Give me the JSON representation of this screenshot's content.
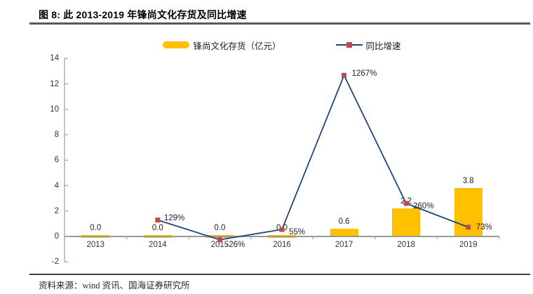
{
  "header": {
    "title": "图 8:  此 2013-2019 年锋尚文化存货及同比增速"
  },
  "legend": {
    "bar_label": "锋尚文化存货（亿元）",
    "line_label": "同比增速"
  },
  "chart_data": {
    "type": "bar+line",
    "categories": [
      "2013",
      "2014",
      "2015",
      "2016",
      "2017",
      "2018",
      "2019"
    ],
    "series": [
      {
        "name": "锋尚文化存货（亿元）",
        "type": "bar",
        "axis": "left",
        "color": "#FFC000",
        "values": [
          0.0,
          0.0,
          0.0,
          0.0,
          0.6,
          2.2,
          3.8
        ],
        "labels": [
          "0.0",
          "0.0",
          "0.0",
          "0.0",
          "0.6",
          "2.2",
          "3.8"
        ]
      },
      {
        "name": "同比增速",
        "type": "line",
        "axis": "left_scaled_pct",
        "color": "#1F477D",
        "marker_color": "#BE4B48",
        "pct_values": [
          null,
          129,
          -26,
          55,
          1267,
          260,
          73
        ],
        "labels": [
          "",
          "129%",
          "-26%",
          "55%",
          "1267%",
          "260%",
          "73%"
        ]
      }
    ],
    "ylabel": "",
    "xlabel": "",
    "ylim": [
      -2,
      14
    ],
    "ytick_step": 2,
    "yticks": [
      "-2",
      "0",
      "2",
      "4",
      "6",
      "8",
      "10",
      "12",
      "14"
    ],
    "grid": false,
    "legend_position": "top-center",
    "colors": {
      "bar": "#FFC000",
      "line": "#1F477D",
      "marker": "#BE4B48",
      "axis": "#A6A6A6"
    }
  },
  "footer": {
    "source": "资料来源：wind 资讯、国海证券研究所"
  }
}
